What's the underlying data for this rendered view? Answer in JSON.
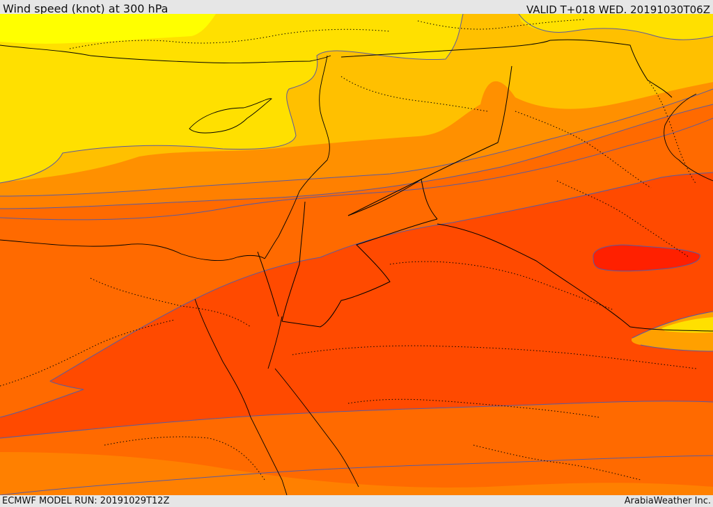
{
  "header": {
    "title": "Wind speed (knot) at 300 hPa",
    "valid_time": "VALID T+018 WED. 20191030T06Z"
  },
  "footer": {
    "model_run": "ECMWF MODEL RUN: 20191029T12Z",
    "credit": "ArabiaWeather Inc."
  },
  "map": {
    "variable": "Wind speed at 300 hPa",
    "units": "knot",
    "palette": [
      "#FFFF00",
      "#FFE000",
      "#FFC000",
      "#FFA000",
      "#FF8000",
      "#FF6A00",
      "#FF4A00",
      "#FF2000"
    ],
    "contour_color": "#5a5aa0",
    "border_color": "#000000"
  }
}
